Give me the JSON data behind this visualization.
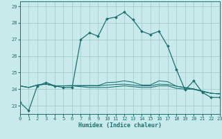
{
  "bg_color": "#c8eaea",
  "grid_color": "#a8cccc",
  "line_color": "#1a7070",
  "xlim": [
    0,
    23
  ],
  "ylim": [
    22.5,
    29.3
  ],
  "yticks": [
    23,
    24,
    25,
    26,
    27,
    28,
    29
  ],
  "xticks": [
    0,
    1,
    2,
    3,
    4,
    5,
    6,
    7,
    8,
    9,
    10,
    11,
    12,
    13,
    14,
    15,
    16,
    17,
    18,
    19,
    20,
    21,
    22,
    23
  ],
  "xlabel": "Humidex (Indice chaleur)",
  "series_main": [
    23.2,
    22.7,
    24.2,
    24.4,
    24.2,
    24.1,
    24.1,
    27.0,
    27.4,
    27.2,
    28.25,
    28.35,
    28.65,
    28.2,
    27.5,
    27.3,
    27.5,
    26.6,
    25.2,
    23.95,
    24.5,
    23.8,
    23.5,
    23.5
  ],
  "series_flat1": [
    24.2,
    24.1,
    24.25,
    24.3,
    24.2,
    24.2,
    24.2,
    24.15,
    24.1,
    24.1,
    24.1,
    24.15,
    24.2,
    24.15,
    24.1,
    24.1,
    24.2,
    24.2,
    24.05,
    24.0,
    24.0,
    23.85,
    23.75,
    23.72
  ],
  "series_flat2": [
    24.2,
    24.1,
    24.25,
    24.3,
    24.2,
    24.2,
    24.2,
    24.2,
    24.2,
    24.2,
    24.25,
    24.28,
    24.3,
    24.25,
    24.2,
    24.2,
    24.3,
    24.28,
    24.18,
    24.1,
    24.02,
    23.88,
    23.75,
    23.72
  ],
  "series_flat3": [
    24.2,
    24.1,
    24.25,
    24.3,
    24.2,
    24.2,
    24.22,
    24.22,
    24.22,
    24.22,
    24.4,
    24.42,
    24.5,
    24.42,
    24.25,
    24.25,
    24.5,
    24.45,
    24.18,
    24.08,
    23.98,
    23.88,
    23.75,
    23.72
  ]
}
